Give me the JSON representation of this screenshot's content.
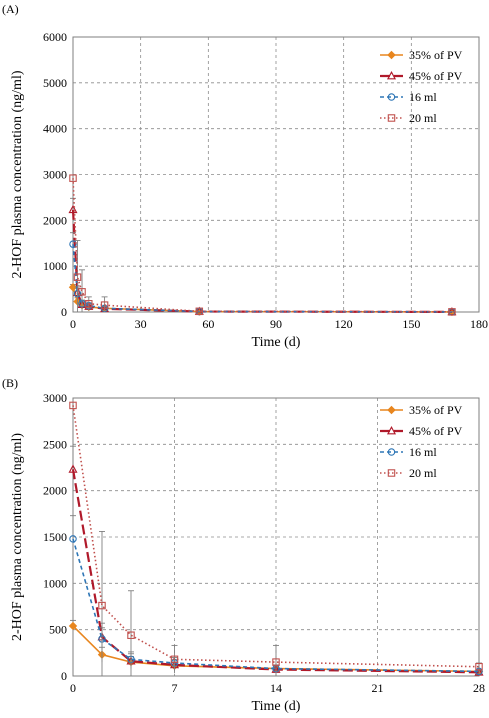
{
  "chart_data": [
    {
      "panel_label": "(A)",
      "type": "line",
      "title": "",
      "xlabel": "Time (d)",
      "ylabel": "2-HOF plasma concentration (ng/ml)",
      "xlim": [
        0,
        180
      ],
      "ylim": [
        0,
        6000
      ],
      "xticks": [
        "0",
        "30",
        "60",
        "90",
        "120",
        "150",
        "180"
      ],
      "yticks": [
        "0",
        "1000",
        "2000",
        "3000",
        "4000",
        "5000",
        "6000"
      ],
      "grid": true,
      "legend_position": "top-right",
      "series": [
        {
          "name": "35% of PV",
          "color": "#e8861f",
          "dash": "",
          "marker": "diamond",
          "x": [
            0,
            2,
            4,
            7,
            14,
            56,
            168
          ],
          "y": [
            540,
            230,
            150,
            110,
            80,
            10,
            2
          ],
          "err": [
            60,
            80,
            60,
            40,
            30,
            5,
            2
          ]
        },
        {
          "name": "45% of PV",
          "color": "#b0192a",
          "dash": "10,4",
          "marker": "triangle",
          "x": [
            0,
            2,
            4,
            7,
            14,
            56,
            168
          ],
          "y": [
            2230,
            420,
            160,
            120,
            70,
            10,
            2
          ],
          "err": [
            250,
            150,
            80,
            60,
            40,
            5,
            2
          ]
        },
        {
          "name": "16 ml",
          "color": "#2e76b6",
          "dash": "4,3",
          "marker": "circle",
          "x": [
            0,
            2,
            4,
            7,
            14,
            56,
            168
          ],
          "y": [
            1480,
            400,
            180,
            140,
            80,
            10,
            2
          ],
          "err": [
            250,
            120,
            80,
            60,
            40,
            5,
            2
          ]
        },
        {
          "name": "20 ml",
          "color": "#c0504d",
          "dash": "1.5,2.5",
          "marker": "square",
          "x": [
            0,
            2,
            4,
            7,
            14,
            56,
            168
          ],
          "y": [
            2920,
            760,
            440,
            180,
            150,
            15,
            3
          ],
          "err": [
            0,
            800,
            480,
            150,
            180,
            8,
            3
          ]
        }
      ]
    },
    {
      "panel_label": "(B)",
      "type": "line",
      "title": "",
      "xlabel": "Time (d)",
      "ylabel": "2-HOF plasma concentration (ng/ml)",
      "xlim": [
        0,
        28
      ],
      "ylim": [
        0,
        3000
      ],
      "xticks": [
        "0",
        "7",
        "14",
        "21",
        "28"
      ],
      "yticks": [
        "0",
        "500",
        "1000",
        "1500",
        "2000",
        "2500",
        "3000"
      ],
      "grid": true,
      "legend_position": "top-right",
      "series": [
        {
          "name": "35% of PV",
          "color": "#e8861f",
          "dash": "",
          "marker": "diamond",
          "x": [
            0,
            2,
            4,
            7,
            14,
            28
          ],
          "y": [
            540,
            230,
            150,
            110,
            80,
            50
          ],
          "err": [
            60,
            80,
            60,
            40,
            30,
            20
          ]
        },
        {
          "name": "45% of PV",
          "color": "#b0192a",
          "dash": "10,4",
          "marker": "triangle",
          "x": [
            0,
            2,
            4,
            7,
            14,
            28
          ],
          "y": [
            2230,
            420,
            160,
            120,
            70,
            40
          ],
          "err": [
            250,
            150,
            80,
            60,
            40,
            20
          ]
        },
        {
          "name": "16 ml",
          "color": "#2e76b6",
          "dash": "4,3",
          "marker": "circle",
          "x": [
            0,
            2,
            4,
            7,
            14,
            28
          ],
          "y": [
            1480,
            400,
            180,
            140,
            80,
            50
          ],
          "err": [
            250,
            120,
            80,
            60,
            40,
            20
          ]
        },
        {
          "name": "20 ml",
          "color": "#c0504d",
          "dash": "1.5,2.5",
          "marker": "square",
          "x": [
            0,
            2,
            4,
            7,
            14,
            28
          ],
          "y": [
            2920,
            760,
            440,
            180,
            150,
            100
          ],
          "err": [
            0,
            800,
            480,
            150,
            180,
            40
          ]
        }
      ]
    }
  ]
}
